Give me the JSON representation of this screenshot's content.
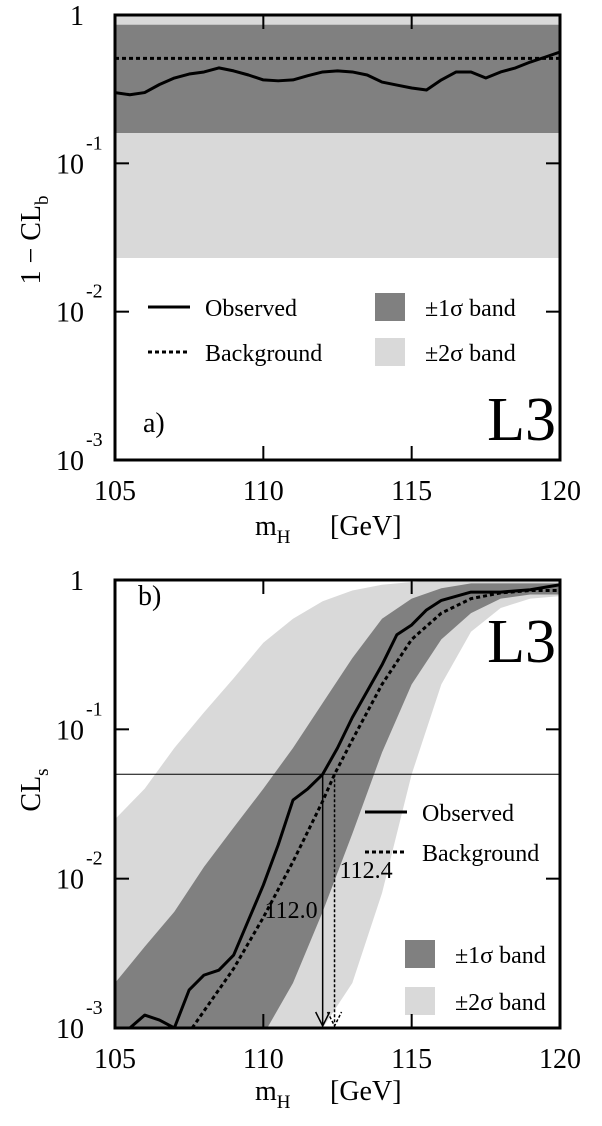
{
  "chart_data": [
    {
      "type": "line",
      "panel": "a)",
      "experiment": "L3",
      "ylabel": {
        "text": "1 − CL",
        "subscript": "b"
      },
      "xlabel": {
        "symbol": "m",
        "subscript": "H",
        "unit": "[GeV]"
      },
      "xlim": [
        105,
        120
      ],
      "xticks": [
        105,
        110,
        115,
        120
      ],
      "ylim": [
        0.001,
        1
      ],
      "yscale": "log",
      "yticks": [
        1,
        {
          "value": 0.1,
          "label": "10",
          "exponent": "-1"
        },
        {
          "value": 0.01,
          "label": "10",
          "exponent": "-2"
        },
        {
          "value": 0.001,
          "label": "10",
          "exponent": "-3"
        }
      ],
      "series": [
        {
          "name": "±2σ band",
          "type": "band",
          "color": "#d9d9d9",
          "x": [
            105,
            120
          ],
          "lower": [
            0.023,
            0.023
          ],
          "upper": [
            1,
            1
          ]
        },
        {
          "name": "±1σ band",
          "type": "band",
          "color": "#808080",
          "x": [
            105,
            120
          ],
          "lower": [
            0.16,
            0.16
          ],
          "upper": [
            0.86,
            0.86
          ]
        },
        {
          "name": "Observed",
          "type": "line",
          "style": "solid",
          "color": "#000000",
          "x": [
            105,
            105.5,
            106,
            106.5,
            107,
            107.5,
            108,
            108.5,
            109,
            109.5,
            110,
            110.5,
            111,
            111.5,
            112,
            112.5,
            113,
            113.5,
            114,
            114.5,
            115,
            115.5,
            116,
            116.5,
            117,
            117.5,
            118,
            118.5,
            119,
            119.5,
            120
          ],
          "values": [
            0.3,
            0.29,
            0.3,
            0.34,
            0.376,
            0.4,
            0.413,
            0.44,
            0.42,
            0.394,
            0.365,
            0.36,
            0.365,
            0.39,
            0.413,
            0.42,
            0.413,
            0.394,
            0.353,
            0.337,
            0.322,
            0.312,
            0.365,
            0.413,
            0.413,
            0.376,
            0.413,
            0.44,
            0.482,
            0.52,
            0.563
          ]
        },
        {
          "name": "Background",
          "type": "line",
          "style": "dotted",
          "color": "#000000",
          "x": [
            105,
            120
          ],
          "values": [
            0.51,
            0.51
          ]
        }
      ]
    },
    {
      "type": "line",
      "panel": "b)",
      "experiment": "L3",
      "ylabel": {
        "text": "CL",
        "subscript": "s"
      },
      "xlabel": {
        "symbol": "m",
        "subscript": "H",
        "unit": "[GeV]"
      },
      "xlim": [
        105,
        120
      ],
      "xticks": [
        105,
        110,
        115,
        120
      ],
      "ylim": [
        0.001,
        1
      ],
      "yscale": "log",
      "yticks": [
        1,
        {
          "value": 0.1,
          "label": "10",
          "exponent": "-1"
        },
        {
          "value": 0.01,
          "label": "10",
          "exponent": "-2"
        },
        {
          "value": 0.001,
          "label": "10",
          "exponent": "-3"
        }
      ],
      "limit_line": 0.05,
      "observed_limit": {
        "value": 112.0,
        "label": "112.0"
      },
      "expected_limit": {
        "value": 112.4,
        "label": "112.4"
      },
      "series": [
        {
          "name": "±2σ band",
          "type": "band",
          "color": "#d9d9d9",
          "x": [
            105,
            106,
            107,
            108,
            109,
            110,
            111,
            112,
            113,
            114,
            115,
            116,
            117,
            118,
            119,
            120
          ],
          "lower": [
            0.0001,
            0.0001,
            0.0001,
            0.0001,
            0.0001,
            0.0001,
            0.0002,
            0.001,
            0.002,
            0.008,
            0.05,
            0.2,
            0.45,
            0.65,
            0.75,
            0.78
          ],
          "upper": [
            0.025,
            0.04,
            0.075,
            0.13,
            0.22,
            0.38,
            0.55,
            0.72,
            0.85,
            0.93,
            0.97,
            1,
            1,
            1,
            1,
            1
          ]
        },
        {
          "name": "±1σ band",
          "type": "band",
          "color": "#808080",
          "x": [
            105,
            106,
            107,
            108,
            109,
            110,
            111,
            112,
            113,
            114,
            115,
            116,
            117,
            118,
            119,
            120
          ],
          "lower": [
            0.0001,
            0.0001,
            0.0002,
            0.0003,
            0.0005,
            0.0009,
            0.002,
            0.006,
            0.02,
            0.07,
            0.2,
            0.4,
            0.6,
            0.75,
            0.8,
            0.8
          ],
          "upper": [
            0.002,
            0.0035,
            0.006,
            0.012,
            0.022,
            0.04,
            0.075,
            0.15,
            0.3,
            0.55,
            0.75,
            0.88,
            0.95,
            0.95,
            0.95,
            0.95
          ]
        },
        {
          "name": "Observed",
          "type": "line",
          "style": "solid",
          "color": "#000000",
          "x": [
            105.5,
            106,
            106.5,
            107,
            107.5,
            108,
            108.5,
            109,
            109.5,
            110,
            110.5,
            111,
            111.5,
            112,
            112.5,
            113,
            113.5,
            114,
            114.5,
            115,
            115.5,
            116,
            117,
            118,
            119,
            120
          ],
          "values": [
            0.001,
            0.00122,
            0.00113,
            0.001,
            0.0018,
            0.00226,
            0.00244,
            0.00308,
            0.00528,
            0.00906,
            0.0168,
            0.0336,
            0.04,
            0.05,
            0.075,
            0.12,
            0.18,
            0.27,
            0.43,
            0.5,
            0.63,
            0.73,
            0.83,
            0.83,
            0.86,
            0.93
          ]
        },
        {
          "name": "Background",
          "type": "line",
          "style": "dotted",
          "color": "#000000",
          "x": [
            107.6,
            109,
            110,
            111,
            112,
            112.4,
            113,
            114,
            115,
            116,
            117,
            118,
            119,
            120
          ],
          "values": [
            0.001,
            0.0025,
            0.0055,
            0.013,
            0.033,
            0.05,
            0.085,
            0.2,
            0.4,
            0.6,
            0.75,
            0.82,
            0.85,
            0.85
          ]
        }
      ]
    }
  ]
}
